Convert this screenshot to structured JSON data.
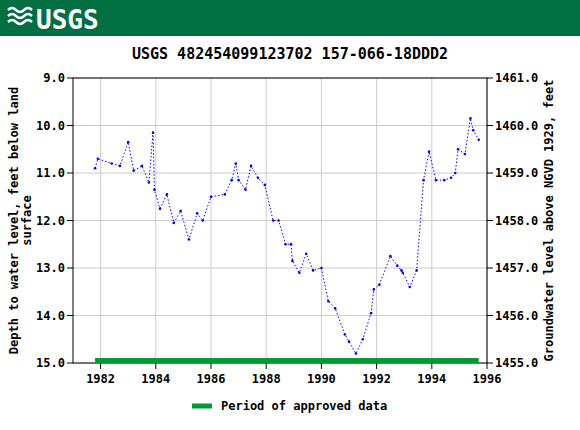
{
  "chart_data": {
    "type": "line",
    "logo": "USGS",
    "title": "USGS 482454099123702 157-066-18DDD2",
    "y_label": [
      "Depth to water level, feet below land",
      "surface"
    ],
    "y2_label": "Groundwater level above NGVD 1929, feet",
    "grid": true,
    "legend": "bottom",
    "xlim": [
      1981,
      1996
    ],
    "xticks": [
      1982,
      1984,
      1986,
      1988,
      1990,
      1992,
      1994,
      1996
    ],
    "ylim": [
      15,
      9
    ],
    "yticks": [
      {
        "value": 9,
        "label": "9.0"
      },
      {
        "value": 10,
        "label": "10.0"
      },
      {
        "value": 11,
        "label": "11.0"
      },
      {
        "value": 12,
        "label": "12.0"
      },
      {
        "value": 13,
        "label": "13.0"
      },
      {
        "value": 14,
        "label": "14.0"
      },
      {
        "value": 15,
        "label": "15.0"
      }
    ],
    "y2lim": [
      1455,
      1461
    ],
    "y2ticks": [
      {
        "value": 1461,
        "label": "1461.0"
      },
      {
        "value": 1460,
        "label": "1460.0"
      },
      {
        "value": 1459,
        "label": "1459.0"
      },
      {
        "value": 1458,
        "label": "1458.0"
      },
      {
        "value": 1457,
        "label": "1457.0"
      },
      {
        "value": 1456,
        "label": "1456.0"
      },
      {
        "value": 1455,
        "label": "1455.0"
      }
    ],
    "series": [
      {
        "color": "#0000ff",
        "type": "line",
        "marker": "dot",
        "line_style": "dotted",
        "x": [
          1981.8,
          1981.9,
          1982.4,
          1982.7,
          1983.0,
          1983.2,
          1983.5,
          1983.75,
          1983.9,
          1983.95,
          1984.15,
          1984.4,
          1984.65,
          1984.9,
          1985.2,
          1985.5,
          1985.7,
          1986.0,
          1986.5,
          1986.75,
          1986.9,
          1987.0,
          1987.25,
          1987.45,
          1987.7,
          1987.95,
          1988.25,
          1988.45,
          1988.7,
          1988.9,
          1988.95,
          1989.2,
          1989.45,
          1989.7,
          1990.0,
          1990.25,
          1990.5,
          1990.85,
          1991.0,
          1991.25,
          1991.5,
          1991.8,
          1991.9,
          1992.1,
          1992.5,
          1992.75,
          1992.9,
          1992.95,
          1993.2,
          1993.45,
          1993.7,
          1993.9,
          1994.15,
          1994.45,
          1994.7,
          1994.85,
          1994.95,
          1995.2,
          1995.4,
          1995.5,
          1995.7
        ],
        "values": [
          10.9,
          10.7,
          10.8,
          10.85,
          10.35,
          10.95,
          10.85,
          11.2,
          10.15,
          11.35,
          11.75,
          11.45,
          12.05,
          11.8,
          12.4,
          11.85,
          12.0,
          11.5,
          11.45,
          11.15,
          10.8,
          11.15,
          11.35,
          10.85,
          11.1,
          11.25,
          12.0,
          12.0,
          12.5,
          12.5,
          12.85,
          13.1,
          12.7,
          13.05,
          13.0,
          13.7,
          13.85,
          14.4,
          14.55,
          14.8,
          14.5,
          13.95,
          13.45,
          13.35,
          12.75,
          12.95,
          13.05,
          13.1,
          13.4,
          13.05,
          11.15,
          10.55,
          11.15,
          11.15,
          11.1,
          11.0,
          10.5,
          10.6,
          9.85,
          10.1,
          10.3
        ]
      },
      {
        "name": "Period of approved data",
        "color": "#009a33",
        "type": "line",
        "line_style": "solid",
        "x": [
          1981.8,
          1995.7
        ],
        "values": [
          14.95,
          14.95
        ]
      }
    ]
  }
}
